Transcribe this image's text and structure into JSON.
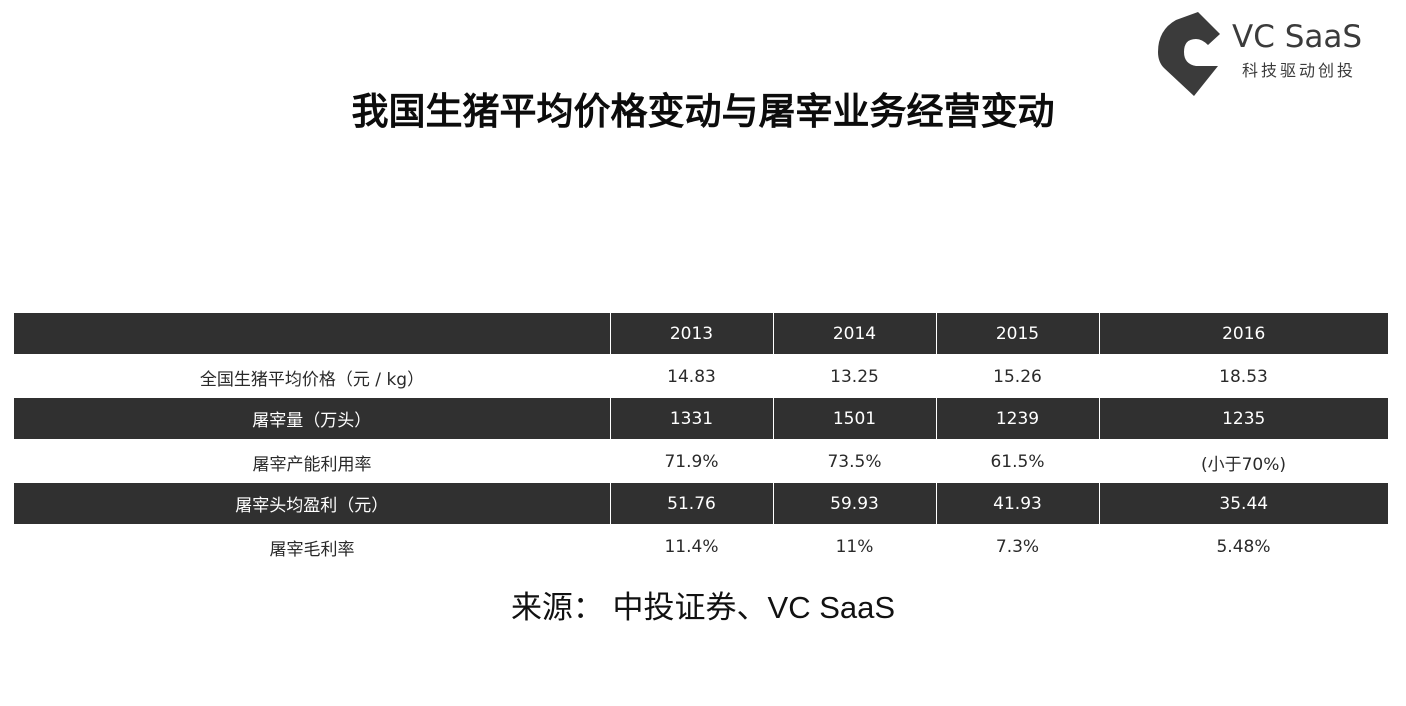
{
  "logo": {
    "name": "VC SaaS",
    "tagline": "科技驱动创投",
    "color": "#3b3b3b"
  },
  "title": "我国生猪平均价格变动与屠宰业务经营变动",
  "table": {
    "header": [
      "",
      "2013",
      "2014",
      "2015",
      "2016"
    ],
    "rows": [
      {
        "label": "全国生猪平均价格（元 / kg）",
        "values": [
          "14.83",
          "13.25",
          "15.26",
          "18.53"
        ]
      },
      {
        "label": "屠宰量（万头）",
        "values": [
          "1331",
          "1501",
          "1239",
          "1235"
        ]
      },
      {
        "label": "屠宰产能利用率",
        "values": [
          "71.9%",
          "73.5%",
          "61.5%",
          "(小于70%)"
        ]
      },
      {
        "label": "屠宰头均盈利（元）",
        "values": [
          "51.76",
          "59.93",
          "41.93",
          "35.44"
        ]
      },
      {
        "label": "屠宰毛利率",
        "values": [
          "11.4%",
          "11%",
          "7.3%",
          "5.48%"
        ]
      }
    ],
    "dark_color": "#303030"
  },
  "source": "来源： 中投证券、VC SaaS"
}
